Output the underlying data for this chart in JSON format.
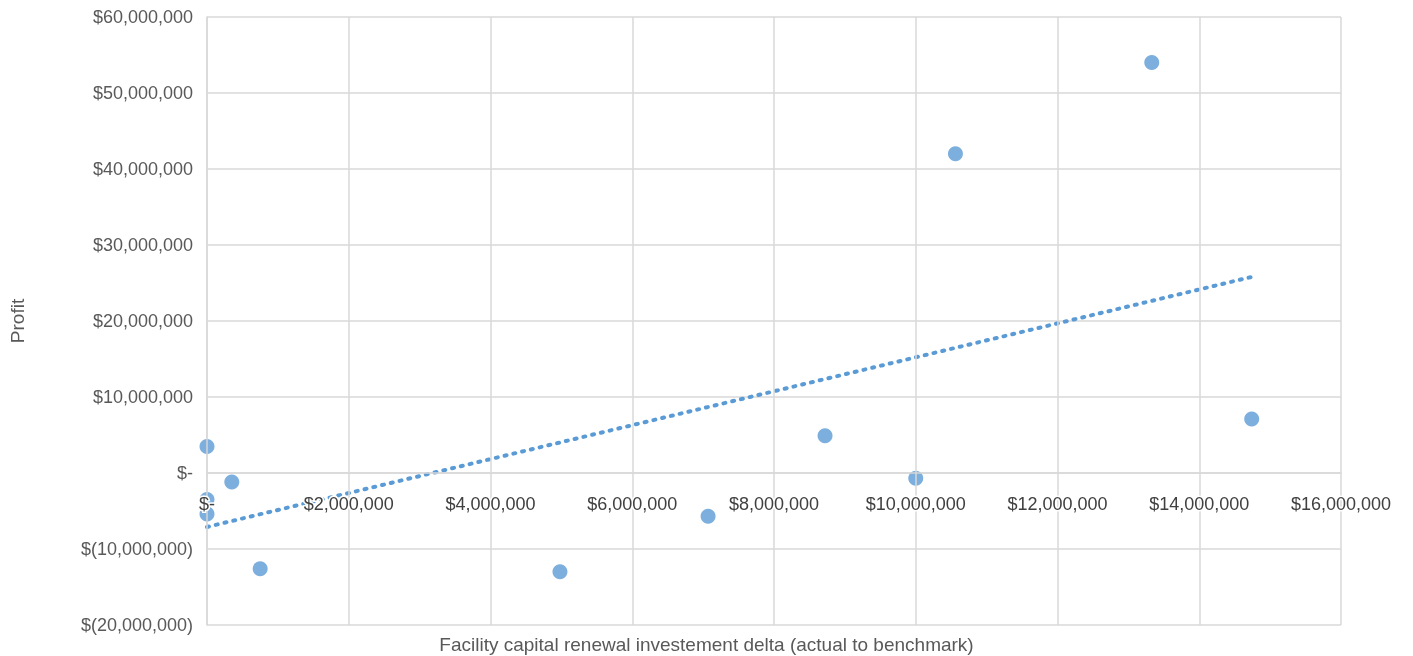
{
  "chart_data": {
    "type": "scatter",
    "xlabel": "Facility capital renewal investement delta (actual to benchmark)",
    "ylabel": "Profit",
    "xlim": [
      0,
      16000000
    ],
    "ylim": [
      -20000000,
      60000000
    ],
    "xticks": [
      {
        "value": 0,
        "label": "$-"
      },
      {
        "value": 2000000,
        "label": "$2,000,000"
      },
      {
        "value": 4000000,
        "label": "$4,000,000"
      },
      {
        "value": 6000000,
        "label": "$6,000,000"
      },
      {
        "value": 8000000,
        "label": "$8,000,000"
      },
      {
        "value": 10000000,
        "label": "$10,000,000"
      },
      {
        "value": 12000000,
        "label": "$12,000,000"
      },
      {
        "value": 14000000,
        "label": "$14,000,000"
      },
      {
        "value": 16000000,
        "label": "$16,000,000"
      }
    ],
    "yticks": [
      {
        "value": -20000000,
        "label": "$(20,000,000)"
      },
      {
        "value": -10000000,
        "label": "$(10,000,000)"
      },
      {
        "value": 0,
        "label": "$-"
      },
      {
        "value": 10000000,
        "label": "$10,000,000"
      },
      {
        "value": 20000000,
        "label": "$20,000,000"
      },
      {
        "value": 30000000,
        "label": "$30,000,000"
      },
      {
        "value": 40000000,
        "label": "$40,000,000"
      },
      {
        "value": 50000000,
        "label": "$50,000,000"
      },
      {
        "value": 60000000,
        "label": "$60,000,000"
      }
    ],
    "grid": true,
    "series": [
      {
        "color": "#5b9bd5",
        "marker": "circle",
        "x": [
          0,
          0,
          0,
          350000,
          750000,
          4980000,
          7070000,
          8720000,
          10000000,
          10560000,
          13330000,
          14740000
        ],
        "values": [
          3500000,
          -3500000,
          -5400000,
          -1200000,
          -12600000,
          -13000000,
          -5700000,
          4900000,
          -700000,
          42000000,
          54000000,
          7100000
        ]
      },
      {
        "type": "line",
        "color": "#5b9bd5",
        "marker": "none",
        "line_style": "dotted",
        "x": [
          0,
          14740000
        ],
        "values": [
          -7100000,
          25800000
        ]
      }
    ]
  }
}
